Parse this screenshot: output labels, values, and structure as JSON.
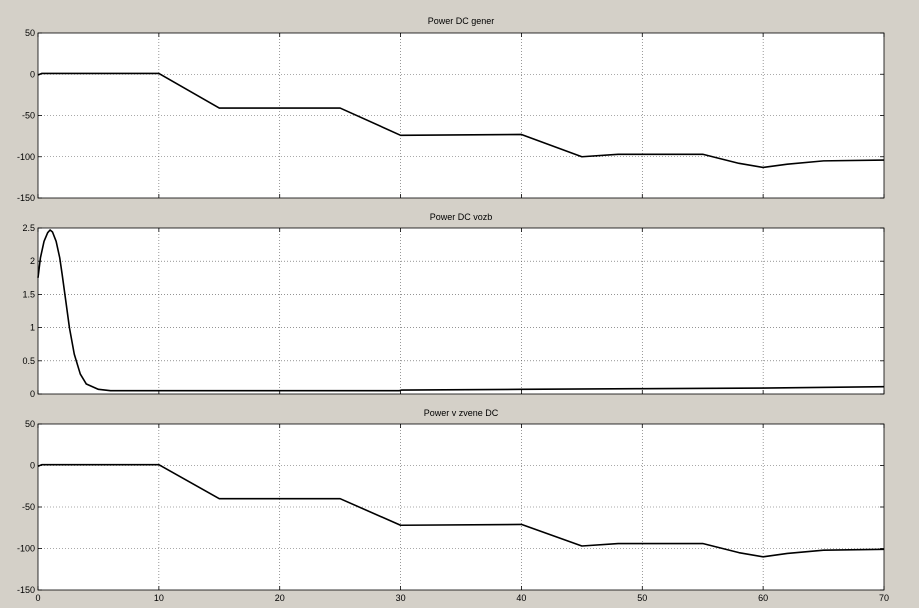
{
  "chart_data": [
    {
      "type": "line",
      "title": "Power DC gener",
      "xlabel": "",
      "ylabel": "",
      "xlim": [
        0,
        70
      ],
      "ylim": [
        -150,
        50
      ],
      "xticks": [
        "0",
        "10",
        "20",
        "30",
        "40",
        "50",
        "60",
        "70"
      ],
      "yticks": [
        "50",
        "0",
        "-50",
        "-100",
        "-150"
      ],
      "grid": true,
      "show_xticks": false,
      "line_color": "#000000",
      "series": [
        {
          "x": [
            0,
            0.3,
            1,
            10,
            15,
            25,
            30,
            40,
            45,
            48,
            55,
            58,
            60,
            62,
            65,
            70
          ],
          "y": [
            -1,
            1,
            1,
            1,
            -41,
            -41,
            -74,
            -73,
            -100,
            -97,
            -97,
            -108,
            -113,
            -109,
            -105,
            -104
          ]
        }
      ]
    },
    {
      "type": "line",
      "title": "Power DC vozb",
      "xlabel": "",
      "ylabel": "",
      "xlim": [
        0,
        70
      ],
      "ylim": [
        0,
        2.5
      ],
      "xticks": [
        "0",
        "10",
        "20",
        "30",
        "40",
        "50",
        "60",
        "70"
      ],
      "yticks": [
        "2.5",
        "2",
        "1.5",
        "1",
        "0.5",
        "0"
      ],
      "grid": true,
      "show_xticks": false,
      "line_color": "#000000",
      "series": [
        {
          "x": [
            0,
            0.2,
            0.5,
            0.8,
            1.0,
            1.2,
            1.5,
            1.8,
            2.0,
            2.3,
            2.6,
            3.0,
            3.5,
            4.0,
            5.0,
            6.0,
            8.0,
            10,
            20,
            29.9,
            30.1,
            40,
            50,
            60,
            70
          ],
          "y": [
            1.75,
            2.05,
            2.3,
            2.43,
            2.47,
            2.44,
            2.3,
            2.05,
            1.8,
            1.4,
            1.0,
            0.6,
            0.3,
            0.15,
            0.07,
            0.05,
            0.05,
            0.05,
            0.05,
            0.05,
            0.06,
            0.07,
            0.08,
            0.09,
            0.11
          ]
        }
      ]
    },
    {
      "type": "line",
      "title": "Power v zvene DC",
      "xlabel": "",
      "ylabel": "",
      "xlim": [
        0,
        70
      ],
      "ylim": [
        -150,
        50
      ],
      "xticks": [
        "0",
        "10",
        "20",
        "30",
        "40",
        "50",
        "60",
        "70"
      ],
      "yticks": [
        "50",
        "0",
        "-50",
        "-100",
        "-150"
      ],
      "grid": true,
      "show_xticks": true,
      "line_color": "#000000",
      "series": [
        {
          "x": [
            0,
            0.3,
            1,
            10,
            15,
            25,
            30,
            40,
            45,
            48,
            55,
            58,
            60,
            62,
            65,
            70
          ],
          "y": [
            -1,
            1,
            1,
            1,
            -40,
            -40,
            -72,
            -71,
            -97,
            -94,
            -94,
            -105,
            -110,
            -106,
            -102,
            -101
          ]
        }
      ]
    }
  ]
}
